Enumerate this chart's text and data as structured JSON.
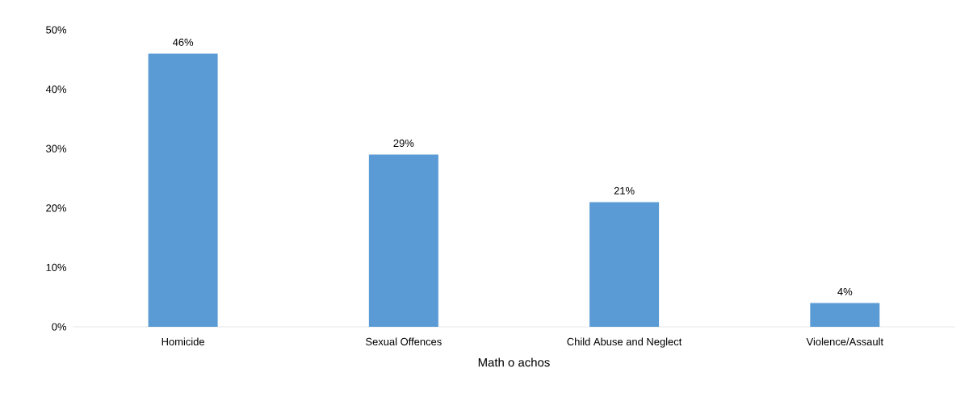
{
  "chart_data": {
    "type": "bar",
    "xlabel": "Math o achos",
    "categories": [
      "Homicide",
      "Sexual Offences",
      "Child Abuse and Neglect",
      "Violence/Assault"
    ],
    "values": [
      46,
      29,
      21,
      4
    ],
    "value_labels": [
      "46%",
      "29%",
      "21%",
      "4%"
    ],
    "color": "#5b9bd5",
    "ylim": [
      0,
      50
    ],
    "yticks": [
      {
        "value": 0,
        "label": "0%"
      },
      {
        "value": 10,
        "label": "10%"
      },
      {
        "value": 20,
        "label": "20%"
      },
      {
        "value": 30,
        "label": "30%"
      },
      {
        "value": 40,
        "label": "40%"
      },
      {
        "value": 50,
        "label": "50%"
      }
    ]
  }
}
